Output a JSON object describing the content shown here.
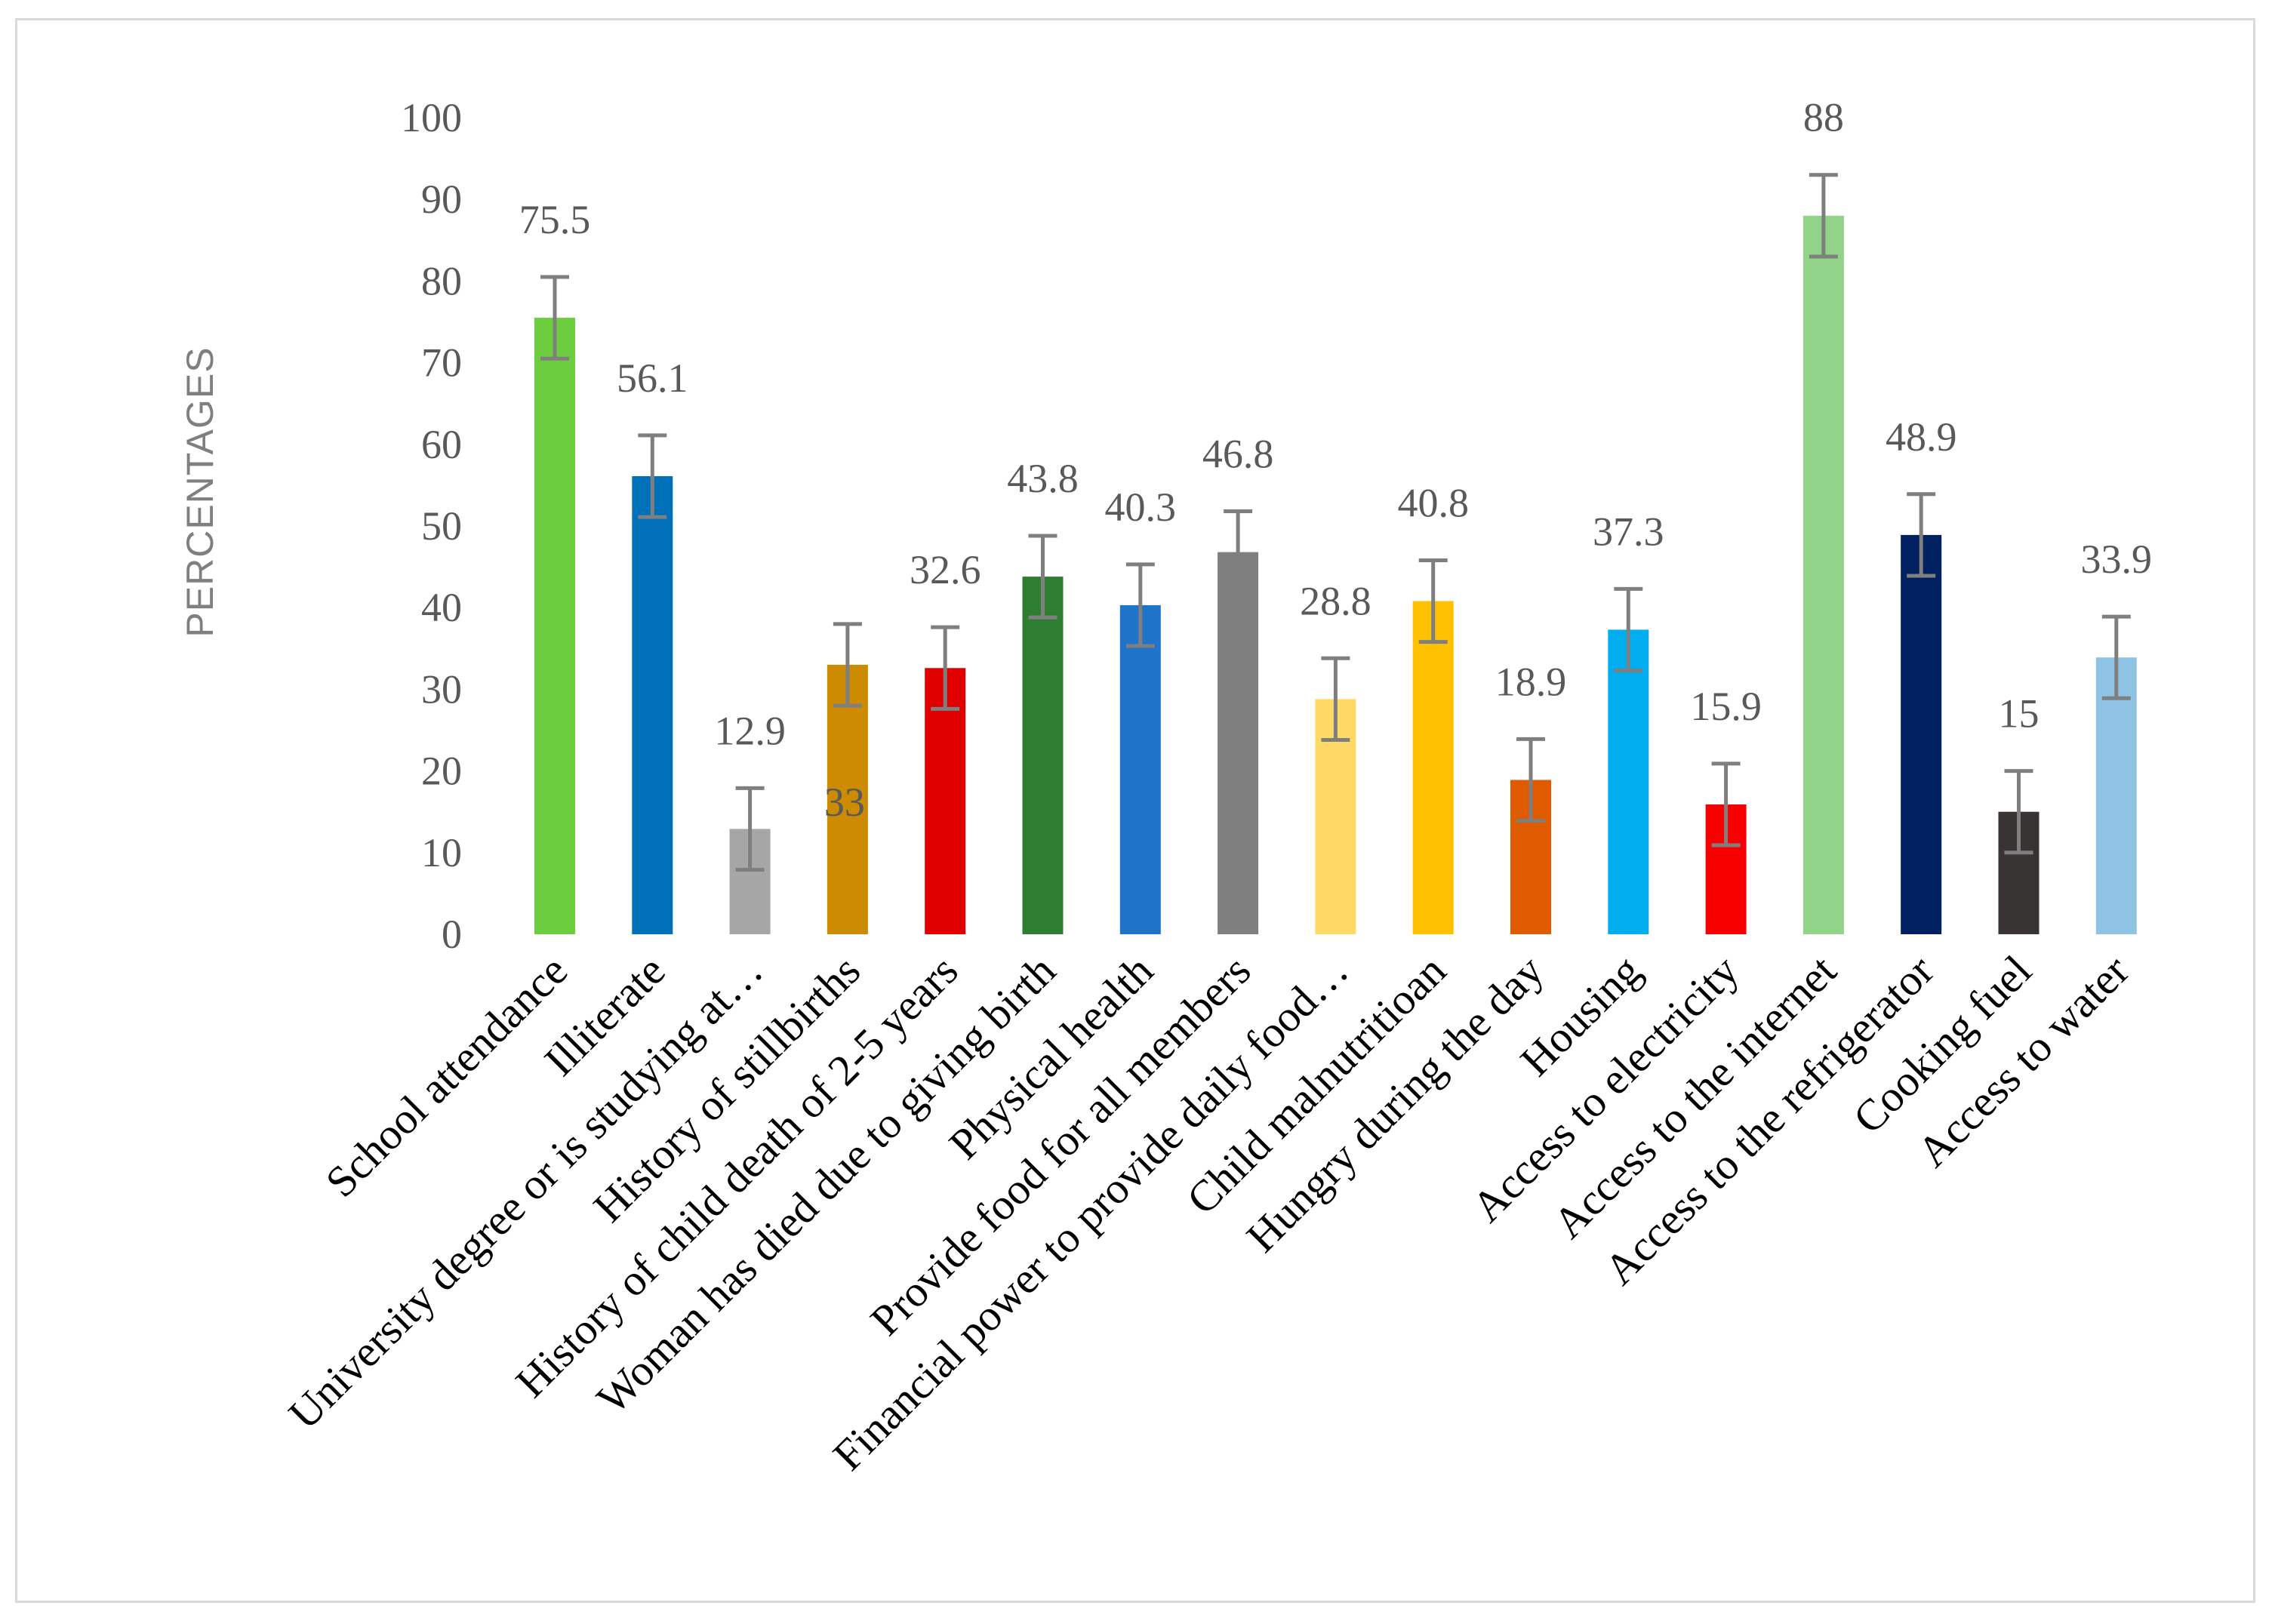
{
  "chart_data": {
    "type": "bar",
    "title": "",
    "xlabel": "",
    "ylabel": "PERCENTAGES",
    "ylim": [
      0,
      100
    ],
    "yticks": [
      0,
      10,
      20,
      30,
      40,
      50,
      60,
      70,
      80,
      90,
      100
    ],
    "grid": false,
    "legend": "none",
    "error_bar_halfwidth": 5,
    "categories": [
      "School attendance",
      "Illiterate",
      "University degree or is studying at…",
      "History of stillbirths",
      "History of child death of 2-5 years",
      "Woman has died due to giving birth",
      "Physical health",
      "Provide food for all members",
      "Financial power to provide daily food…",
      "Child malnutritioan",
      "Hungry during the day",
      "Housing",
      "Access to electricity",
      "Access to the internet",
      "Access to the refrigerator",
      "Cooking fuel",
      "Access to water"
    ],
    "values": [
      75.5,
      56.1,
      12.9,
      33,
      32.6,
      43.8,
      40.3,
      46.8,
      28.8,
      40.8,
      18.9,
      37.3,
      15.9,
      88,
      48.9,
      15,
      33.9
    ],
    "data_labels": [
      "75.5",
      "56.1",
      "12.9",
      "33",
      "32.6",
      "43.8",
      "40.3",
      "46.8",
      "28.8",
      "40.8",
      "18.9",
      "37.3",
      "15.9",
      "88",
      "48.9",
      "15",
      "33.9"
    ],
    "colors": [
      "#6CCE3E",
      "#0070B8",
      "#A6A6A6",
      "#CC8B00",
      "#E00000",
      "#2E7D32",
      "#1F73C9",
      "#7F7F7F",
      "#FFD966",
      "#FFC000",
      "#E05A00",
      "#00AEEF",
      "#F80000",
      "#92D38A",
      "#002060",
      "#383434",
      "#8FC3E4"
    ],
    "error_bar_color": "#7F7F7F"
  }
}
